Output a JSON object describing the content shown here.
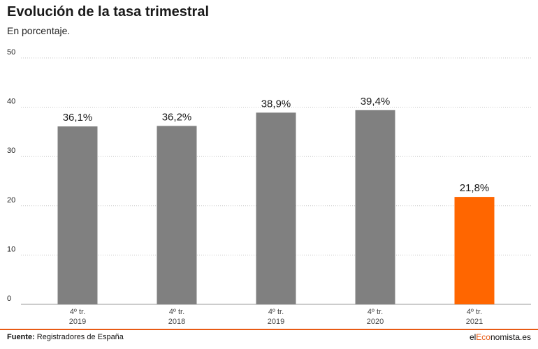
{
  "chart_data": {
    "type": "bar",
    "title": "Evolución de la tasa trimestral",
    "subtitle": "En porcentaje.",
    "categories": [
      [
        "4º tr.",
        "2019"
      ],
      [
        "4º tr.",
        "2018"
      ],
      [
        "4º tr.",
        "2019"
      ],
      [
        "4º tr.",
        "2020"
      ],
      [
        "4º tr.",
        "2021"
      ]
    ],
    "values": [
      36.1,
      36.2,
      38.9,
      39.4,
      21.8
    ],
    "value_labels": [
      "36,1%",
      "36,2%",
      "38,9%",
      "39,4%",
      "21,8%"
    ],
    "bar_colors": [
      "#808080",
      "#808080",
      "#808080",
      "#808080",
      "#ff6600"
    ],
    "ylim": [
      0,
      50
    ],
    "yticks": [
      0,
      10,
      20,
      30,
      40,
      50
    ],
    "grid": true,
    "xlabel": "",
    "ylabel": ""
  },
  "footer": {
    "source_label": "Fuente:",
    "source_text": " Registradores de España",
    "brand_prefix": "el",
    "brand_accent": "Eco",
    "brand_suffix": "nomista.es"
  },
  "colors": {
    "grid": "#c8c8c8",
    "axis": "#999999",
    "accent": "#e85a14"
  }
}
